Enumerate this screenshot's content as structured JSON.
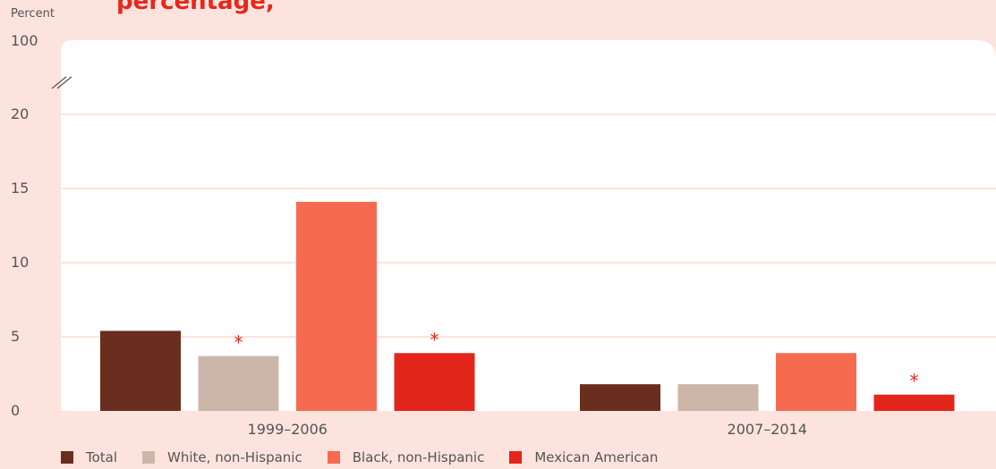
{
  "chart_data": {
    "type": "bar",
    "title": "",
    "ylabel": "Percent",
    "categories": [
      "1999–2006",
      "2007–2014"
    ],
    "series": [
      {
        "name": "Total",
        "color": "#6a2e1e",
        "values": [
          5.4,
          1.8
        ]
      },
      {
        "name": "White, non-Hispanic",
        "color": "#cdb5a9",
        "values": [
          3.7,
          1.8
        ]
      },
      {
        "name": "Black, non-Hispanic",
        "color": "#f66b4f",
        "values": [
          14.1,
          3.9
        ]
      },
      {
        "name": "Mexican American",
        "color": "#e3261c",
        "values": [
          3.9,
          1.1
        ]
      }
    ],
    "significance_marker": "*",
    "significant": [
      [
        false,
        false
      ],
      [
        true,
        false
      ],
      [
        false,
        false
      ],
      [
        true,
        true
      ]
    ],
    "yticks": [
      "0",
      "5",
      "10",
      "15",
      "20",
      "100"
    ],
    "ylim": [
      0,
      20
    ],
    "axis_break": true,
    "grid": true,
    "legend_position": "bottom-left"
  },
  "colors": {
    "background": "#fde3dd",
    "plot_background": "#ffffff",
    "gridline": "#fde3dd",
    "marker": "#e3261c"
  }
}
